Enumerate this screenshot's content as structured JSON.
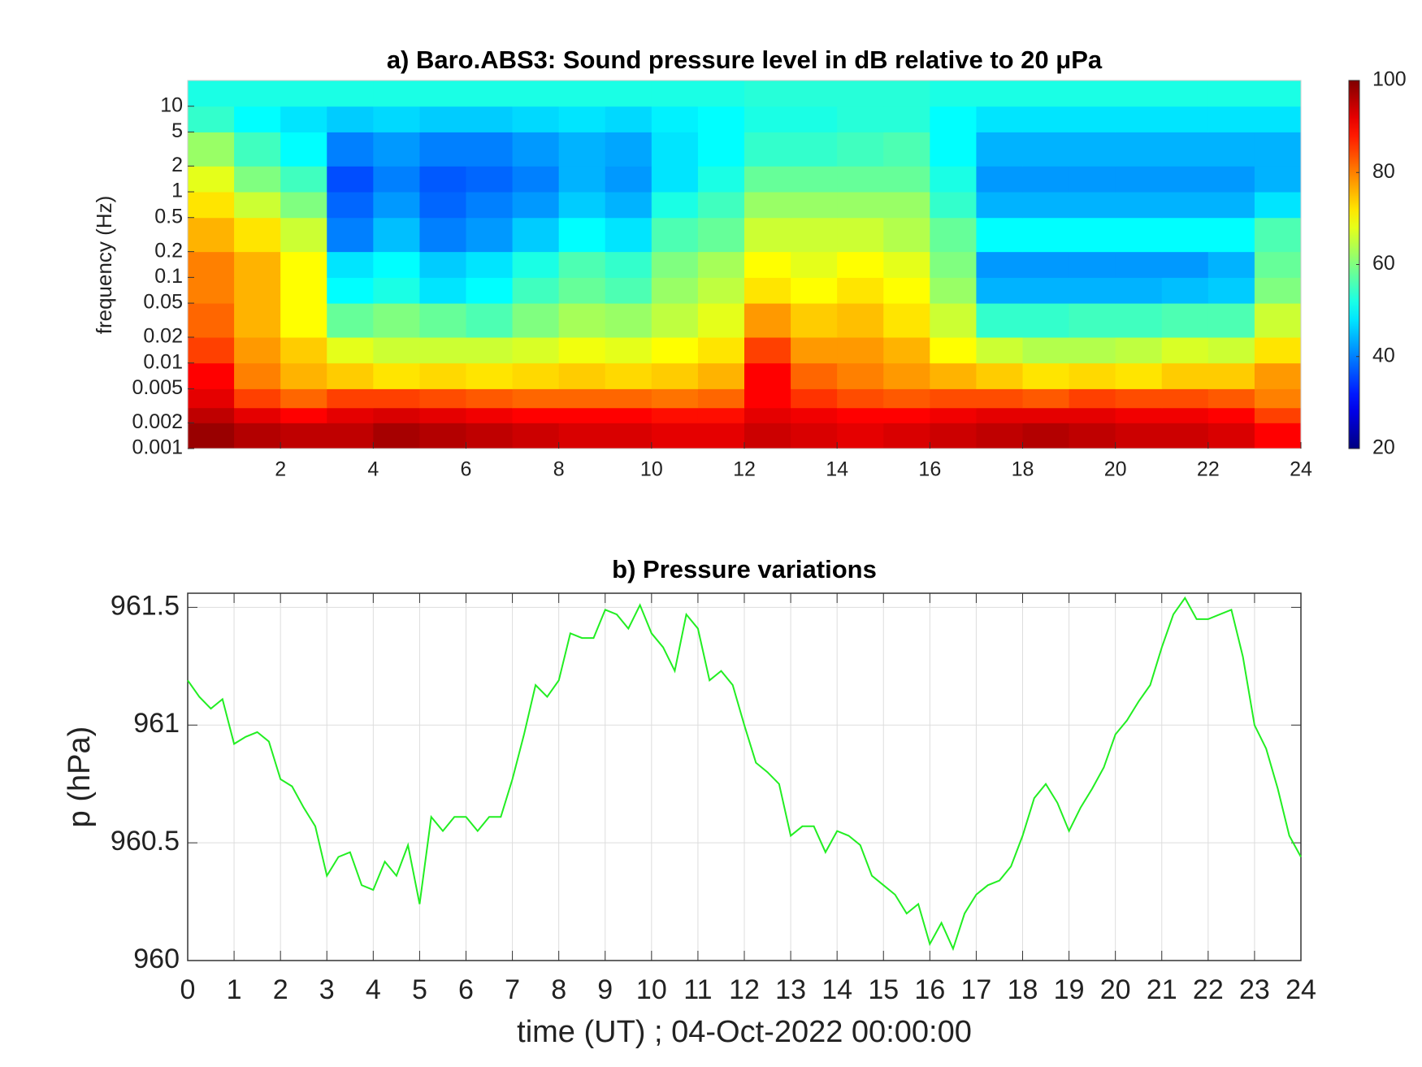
{
  "chart_data": [
    {
      "type": "heatmap",
      "title": "a) Baro.ABS3: Sound pressure level in dB relative to 20 μPa",
      "ylabel": "frequency (Hz)",
      "colormap": "jet",
      "log_y": true,
      "xbins": [
        0,
        1,
        2,
        3,
        4,
        5,
        6,
        7,
        8,
        9,
        10,
        11,
        12,
        13,
        14,
        15,
        16,
        17,
        18,
        19,
        20,
        21,
        22,
        23,
        24
      ],
      "ybins": [
        0.001,
        0.002,
        0.003,
        0.005,
        0.01,
        0.02,
        0.05,
        0.1,
        0.2,
        0.5,
        1,
        2,
        5,
        10,
        20
      ],
      "values": [
        [
          98,
          96,
          95,
          95,
          97,
          96,
          95,
          94,
          93,
          93,
          92,
          92,
          94,
          93,
          92,
          93,
          94,
          95,
          96,
          95,
          94,
          94,
          93,
          90
        ],
        [
          95,
          92,
          90,
          92,
          93,
          92,
          91,
          90,
          90,
          90,
          89,
          89,
          92,
          91,
          90,
          90,
          91,
          92,
          92,
          92,
          91,
          91,
          90,
          85
        ],
        [
          92,
          85,
          82,
          85,
          85,
          84,
          83,
          82,
          82,
          82,
          81,
          82,
          90,
          86,
          84,
          83,
          84,
          84,
          83,
          85,
          84,
          84,
          83,
          80
        ],
        [
          90,
          80,
          76,
          74,
          72,
          73,
          72,
          73,
          74,
          73,
          74,
          76,
          90,
          82,
          80,
          78,
          76,
          74,
          72,
          73,
          72,
          74,
          74,
          78
        ],
        [
          85,
          78,
          74,
          68,
          66,
          66,
          66,
          67,
          69,
          68,
          70,
          72,
          85,
          78,
          78,
          76,
          70,
          66,
          64,
          64,
          65,
          67,
          66,
          72
        ],
        [
          82,
          76,
          70,
          58,
          60,
          58,
          56,
          60,
          63,
          62,
          65,
          68,
          78,
          74,
          75,
          72,
          66,
          54,
          54,
          55,
          55,
          56,
          56,
          66
        ],
        [
          80,
          76,
          70,
          50,
          52,
          48,
          50,
          55,
          58,
          56,
          62,
          65,
          72,
          70,
          72,
          70,
          62,
          44,
          44,
          44,
          44,
          45,
          46,
          60
        ],
        [
          80,
          76,
          70,
          48,
          50,
          46,
          48,
          52,
          56,
          54,
          60,
          63,
          70,
          68,
          70,
          68,
          60,
          42,
          42,
          42,
          42,
          42,
          44,
          58
        ],
        [
          76,
          72,
          66,
          40,
          45,
          40,
          42,
          46,
          50,
          48,
          56,
          58,
          66,
          66,
          66,
          64,
          58,
          50,
          50,
          50,
          50,
          50,
          50,
          56
        ],
        [
          72,
          66,
          60,
          38,
          42,
          38,
          40,
          42,
          46,
          44,
          52,
          55,
          62,
          62,
          62,
          62,
          54,
          44,
          44,
          44,
          44,
          44,
          44,
          48
        ],
        [
          68,
          60,
          55,
          36,
          40,
          37,
          38,
          40,
          44,
          42,
          48,
          52,
          58,
          58,
          58,
          58,
          52,
          42,
          42,
          42,
          42,
          42,
          42,
          44
        ],
        [
          62,
          55,
          50,
          40,
          42,
          40,
          40,
          42,
          44,
          43,
          48,
          50,
          54,
          54,
          55,
          56,
          50,
          44,
          44,
          44,
          44,
          44,
          44,
          44
        ],
        [
          54,
          50,
          48,
          46,
          47,
          46,
          46,
          47,
          48,
          47,
          49,
          50,
          52,
          52,
          53,
          53,
          50,
          48,
          48,
          48,
          48,
          48,
          48,
          48
        ],
        [
          52,
          52,
          52,
          52,
          52,
          52,
          52,
          52,
          52,
          52,
          52,
          52,
          53,
          53,
          53,
          53,
          52,
          52,
          52,
          52,
          52,
          52,
          52,
          52
        ]
      ],
      "xlim": [
        0,
        24
      ],
      "xticks": [
        2,
        4,
        6,
        8,
        10,
        12,
        14,
        16,
        18,
        20,
        22,
        24
      ],
      "ylim": [
        0.001,
        20
      ],
      "yticks": [
        0.001,
        0.002,
        0.005,
        0.01,
        0.02,
        0.05,
        0.1,
        0.2,
        0.5,
        1,
        2,
        5,
        10
      ],
      "clim": [
        20,
        100
      ],
      "cticks": [
        20,
        40,
        60,
        80,
        100
      ]
    },
    {
      "type": "line",
      "title": "b) Pressure variations",
      "xlabel": "time (UT) ; 04-Oct-2022 00:00:00",
      "ylabel": "p (hPa)",
      "x": [
        0,
        0.25,
        0.5,
        0.75,
        1,
        1.25,
        1.5,
        1.75,
        2,
        2.25,
        2.5,
        2.75,
        3,
        3.25,
        3.5,
        3.75,
        4,
        4.25,
        4.5,
        4.75,
        5,
        5.25,
        5.5,
        5.75,
        6,
        6.25,
        6.5,
        6.75,
        7,
        7.25,
        7.5,
        7.75,
        8,
        8.25,
        8.5,
        8.75,
        9,
        9.25,
        9.5,
        9.75,
        10,
        10.25,
        10.5,
        10.75,
        11,
        11.25,
        11.5,
        11.75,
        12,
        12.25,
        12.5,
        12.75,
        13,
        13.25,
        13.5,
        13.75,
        14,
        14.25,
        14.5,
        14.75,
        15,
        15.25,
        15.5,
        15.75,
        16,
        16.25,
        16.5,
        16.75,
        17,
        17.25,
        17.5,
        17.75,
        18,
        18.25,
        18.5,
        18.75,
        19,
        19.25,
        19.5,
        19.75,
        20,
        20.25,
        20.5,
        20.75,
        21,
        21.25,
        21.5,
        21.75,
        22,
        22.25,
        22.5,
        22.75,
        23,
        23.25,
        23.5,
        23.75,
        24
      ],
      "series": [
        {
          "color": "#22ee22",
          "values": [
            961.19,
            961.12,
            961.07,
            961.11,
            960.92,
            960.95,
            960.97,
            960.93,
            960.77,
            960.74,
            960.65,
            960.57,
            960.36,
            960.44,
            960.46,
            960.32,
            960.3,
            960.42,
            960.36,
            960.49,
            960.24,
            960.61,
            960.55,
            960.61,
            960.61,
            960.55,
            960.61,
            960.61,
            960.77,
            960.96,
            961.17,
            961.12,
            961.19,
            961.39,
            961.37,
            961.37,
            961.49,
            961.47,
            961.41,
            961.51,
            961.39,
            961.33,
            961.23,
            961.47,
            961.41,
            961.19,
            961.23,
            961.17,
            961.0,
            960.84,
            960.8,
            960.75,
            960.53,
            960.57,
            960.57,
            960.46,
            960.55,
            960.53,
            960.49,
            960.36,
            960.32,
            960.28,
            960.2,
            960.24,
            960.07,
            960.16,
            960.05,
            960.2,
            960.28,
            960.32,
            960.34,
            960.4,
            960.53,
            960.69,
            960.75,
            960.67,
            960.55,
            960.65,
            960.73,
            960.82,
            960.96,
            961.02,
            961.1,
            961.17,
            961.33,
            961.47,
            961.54,
            961.45,
            961.45,
            961.47,
            961.49,
            961.29,
            961.0,
            960.9,
            960.73,
            960.53,
            960.44
          ]
        }
      ],
      "xlim": [
        0,
        24
      ],
      "xticks": [
        0,
        1,
        2,
        3,
        4,
        5,
        6,
        7,
        8,
        9,
        10,
        11,
        12,
        13,
        14,
        15,
        16,
        17,
        18,
        19,
        20,
        21,
        22,
        23,
        24
      ],
      "ylim": [
        960,
        961.56
      ],
      "yticks": [
        960,
        960.5,
        961,
        961.5
      ],
      "grid": true
    }
  ]
}
